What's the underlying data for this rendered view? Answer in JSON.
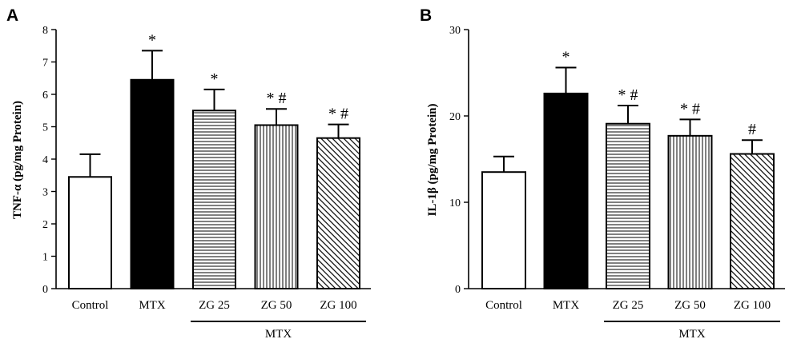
{
  "chart_data": [
    {
      "type": "bar",
      "panel": "A",
      "ylabel": "TNF-α (pg/mg Protein)",
      "ylim": [
        0,
        8
      ],
      "yticks": [
        0,
        1,
        2,
        3,
        4,
        5,
        6,
        7,
        8
      ],
      "categories": [
        "Control",
        "MTX",
        "ZG 25",
        "ZG 50",
        "ZG 100"
      ],
      "values": [
        3.45,
        6.45,
        5.5,
        5.05,
        4.65
      ],
      "errors": [
        0.7,
        0.9,
        0.65,
        0.5,
        0.42
      ],
      "fills": [
        "white",
        "black",
        "horizontal",
        "vertical",
        "diagonal"
      ],
      "annotations": [
        "",
        "*",
        "*",
        "* #",
        "* #"
      ],
      "group_label": "MTX",
      "group_span": [
        "ZG 25",
        "ZG 100"
      ]
    },
    {
      "type": "bar",
      "panel": "B",
      "ylabel": "IL-1β (pg/mg Protein)",
      "ylim": [
        0,
        30
      ],
      "yticks": [
        0,
        10,
        20,
        30
      ],
      "categories": [
        "Control",
        "MTX",
        "ZG 25",
        "ZG 50",
        "ZG 100"
      ],
      "values": [
        13.5,
        22.6,
        19.1,
        17.7,
        15.6
      ],
      "errors": [
        1.8,
        3.0,
        2.1,
        1.9,
        1.6
      ],
      "fills": [
        "white",
        "black",
        "horizontal",
        "vertical",
        "diagonal"
      ],
      "annotations": [
        "",
        "*",
        "* #",
        "* #",
        "#"
      ],
      "group_label": "MTX",
      "group_span": [
        "ZG 25",
        "ZG 100"
      ]
    }
  ]
}
